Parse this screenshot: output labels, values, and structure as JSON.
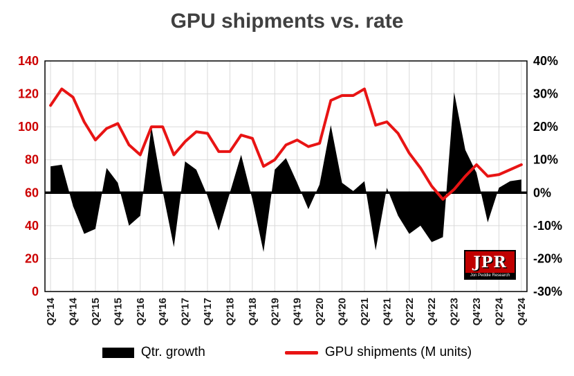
{
  "title": "GPU shipments vs. rate",
  "legend": {
    "growth_label": "Qtr. growth",
    "shipments_label": "GPU shipments (M units)"
  },
  "logo": {
    "text": "JPR",
    "subtext": "Jon Peddie Research"
  },
  "colors": {
    "line_red": "#e81414",
    "area_black": "#000000",
    "left_axis_label": "#cc0000",
    "right_axis_label": "#000000",
    "x_axis_label": "#1a1a1a",
    "title": "#404040",
    "gridline": "#d9d9d9",
    "plot_border": "#000000",
    "zero_line": "#000000",
    "logo_bg": "#c00000"
  },
  "chart_data": {
    "type": "combo",
    "title": "GPU shipments vs. rate",
    "x_tick_every": 2,
    "x": [
      "Q2'14",
      "Q3'14",
      "Q4'14",
      "Q1'15",
      "Q2'15",
      "Q3'15",
      "Q4'15",
      "Q1'16",
      "Q2'16",
      "Q3'16",
      "Q4'16",
      "Q1'17",
      "Q2'17",
      "Q3'17",
      "Q4'17",
      "Q1'18",
      "Q2'18",
      "Q3'18",
      "Q4'18",
      "Q1'19",
      "Q2'19",
      "Q3'19",
      "Q4'19",
      "Q1'20",
      "Q2'20",
      "Q3'20",
      "Q4'20",
      "Q1'21",
      "Q2'21",
      "Q3'21",
      "Q4'21",
      "Q1'22",
      "Q2'22",
      "Q3'22",
      "Q4'22",
      "Q1'23",
      "Q2'23",
      "Q3'23",
      "Q4'23",
      "Q1'24",
      "Q2'24",
      "Q3'24",
      "Q4'24"
    ],
    "x_tick_labels": [
      "Q2'14",
      "Q4'14",
      "Q2'15",
      "Q4'15",
      "Q2'16",
      "Q4'16",
      "Q2'17",
      "Q4'17",
      "Q2'18",
      "Q4'18",
      "Q2'19",
      "Q4'19",
      "Q2'20",
      "Q4'20",
      "Q2'21",
      "Q4'21",
      "Q2'22",
      "Q4'22",
      "Q2'23",
      "Q4'23",
      "Q2'24",
      "Q4'24"
    ],
    "series": [
      {
        "name": "Qtr. growth",
        "type": "area",
        "axis": "right",
        "unit": "%",
        "values": [
          8,
          8.5,
          -4,
          -12.5,
          -11,
          7.5,
          3,
          -10,
          -7,
          20,
          0.5,
          -16.5,
          9.5,
          7,
          -1,
          -11.5,
          0,
          11.5,
          -2,
          -18,
          7,
          10.5,
          3,
          -5,
          2.5,
          20.5,
          3,
          0.5,
          3.5,
          -17.5,
          1.5,
          -7,
          -12.5,
          -10,
          -15,
          -13.5,
          30.5,
          13,
          6,
          -9,
          1.5,
          3.5,
          4
        ]
      },
      {
        "name": "GPU shipments (M units)",
        "type": "line",
        "axis": "left",
        "unit": "M units",
        "values": [
          113,
          123,
          118,
          103,
          92,
          99,
          102,
          89,
          83,
          100,
          100,
          83,
          91,
          97,
          96,
          85,
          85,
          95,
          93,
          76,
          80,
          89,
          92,
          88,
          90,
          116,
          119,
          119,
          123,
          101,
          103,
          96,
          84,
          75,
          64,
          56,
          62,
          70,
          77,
          70,
          71,
          74,
          77
        ]
      }
    ],
    "left_axis": {
      "min": 0,
      "max": 140,
      "step": 20,
      "ticks": [
        0,
        20,
        40,
        60,
        80,
        100,
        120,
        140
      ]
    },
    "right_axis": {
      "min": -30,
      "max": 40,
      "step": 10,
      "ticks": [
        -30,
        -20,
        -10,
        0,
        10,
        20,
        30,
        40
      ],
      "suffix": "%"
    },
    "grid": true,
    "legend_position": "bottom",
    "zero_baseline_on_left_axis": 60
  }
}
